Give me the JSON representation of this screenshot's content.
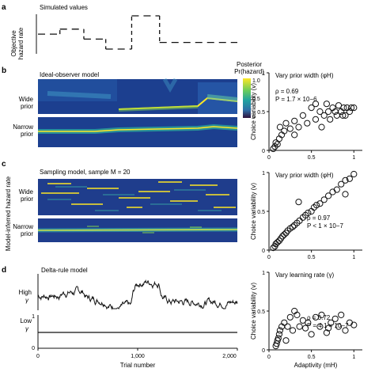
{
  "panel_a": {
    "letter": "a",
    "title": "Simulated values",
    "ylabel_line1": "Objective",
    "ylabel_line2": "hazard rate"
  },
  "panel_b": {
    "letter": "b",
    "title": "Ideal-observer model",
    "colorbar_title_line1": "Posterior",
    "colorbar_title_line2": "Pr(hazard)",
    "colorbar_ticks": [
      "1.0",
      "0.5",
      "0"
    ],
    "row1_line1": "Wide",
    "row1_line2": "prior",
    "row2_line1": "Narrow",
    "row2_line2": "prior"
  },
  "panel_c": {
    "letter": "c",
    "title": "Sampling model, sample M = 20",
    "row1_line1": "Wide",
    "row1_line2": "prior",
    "row2_line1": "Narrow",
    "row2_line2": "prior",
    "side_label": "Model-inferred hazard rate"
  },
  "panel_d": {
    "letter": "d",
    "title": "Delta-rule model",
    "high_label": "High",
    "low_label": "Low",
    "gamma_symbol": "γ",
    "axis_xlabel": "Trial number",
    "x_ticks": [
      "0",
      "1,000",
      "2,000"
    ],
    "low_y_ticks": [
      "1",
      "0"
    ]
  },
  "scatter_common": {
    "ylabel": "Choice variability (v)",
    "xlabel": "Adaptivity (mH)",
    "x_ticks": [
      "0",
      "0.5",
      "1"
    ],
    "y_ticks": [
      "0",
      "0.5",
      "1"
    ]
  },
  "chart_data": [
    {
      "type": "scatter",
      "title": "Vary prior width (φH)",
      "annotation_rho": "ρ = 0.69",
      "annotation_p": "P = 1.7 × 10−6",
      "xlim": [
        0,
        1.1
      ],
      "ylim": [
        0,
        1
      ],
      "points": [
        [
          0.05,
          0.02
        ],
        [
          0.07,
          0.05
        ],
        [
          0.08,
          0.1
        ],
        [
          0.1,
          0.08
        ],
        [
          0.12,
          0.15
        ],
        [
          0.15,
          0.2
        ],
        [
          0.13,
          0.3
        ],
        [
          0.2,
          0.35
        ],
        [
          0.25,
          0.28
        ],
        [
          0.3,
          0.38
        ],
        [
          0.35,
          0.3
        ],
        [
          0.4,
          0.45
        ],
        [
          0.45,
          0.35
        ],
        [
          0.5,
          0.55
        ],
        [
          0.55,
          0.4
        ],
        [
          0.6,
          0.5
        ],
        [
          0.62,
          0.3
        ],
        [
          0.65,
          0.45
        ],
        [
          0.68,
          0.6
        ],
        [
          0.7,
          0.5
        ],
        [
          0.72,
          0.4
        ],
        [
          0.75,
          0.55
        ],
        [
          0.78,
          0.5
        ],
        [
          0.8,
          0.45
        ],
        [
          0.82,
          0.58
        ],
        [
          0.85,
          0.5
        ],
        [
          0.88,
          0.55
        ],
        [
          0.9,
          0.45
        ],
        [
          0.92,
          0.55
        ],
        [
          0.95,
          0.5
        ],
        [
          0.97,
          0.55
        ],
        [
          1.0,
          0.55
        ],
        [
          0.18,
          0.25
        ],
        [
          0.3,
          0.2
        ],
        [
          0.55,
          0.6
        ],
        [
          0.87,
          0.45
        ]
      ]
    },
    {
      "type": "scatter",
      "title": "Vary prior width (φH)",
      "annotation_rho": "ρ = 0.97",
      "annotation_p": "P < 1 × 10−7",
      "xlim": [
        0,
        1.1
      ],
      "ylim": [
        0,
        1
      ],
      "points": [
        [
          0.05,
          0.03
        ],
        [
          0.07,
          0.05
        ],
        [
          0.08,
          0.08
        ],
        [
          0.1,
          0.1
        ],
        [
          0.12,
          0.12
        ],
        [
          0.14,
          0.15
        ],
        [
          0.16,
          0.18
        ],
        [
          0.18,
          0.2
        ],
        [
          0.2,
          0.22
        ],
        [
          0.22,
          0.25
        ],
        [
          0.25,
          0.28
        ],
        [
          0.28,
          0.3
        ],
        [
          0.3,
          0.32
        ],
        [
          0.33,
          0.35
        ],
        [
          0.36,
          0.38
        ],
        [
          0.4,
          0.42
        ],
        [
          0.43,
          0.45
        ],
        [
          0.46,
          0.48
        ],
        [
          0.5,
          0.5
        ],
        [
          0.53,
          0.55
        ],
        [
          0.56,
          0.58
        ],
        [
          0.6,
          0.6
        ],
        [
          0.65,
          0.65
        ],
        [
          0.7,
          0.7
        ],
        [
          0.75,
          0.75
        ],
        [
          0.8,
          0.78
        ],
        [
          0.85,
          0.85
        ],
        [
          0.9,
          0.9
        ],
        [
          0.95,
          0.92
        ],
        [
          1.0,
          0.98
        ],
        [
          0.35,
          0.62
        ],
        [
          0.9,
          0.72
        ]
      ]
    },
    {
      "type": "scatter",
      "title": "Vary learning rate (γ)",
      "annotation_rho": "ρ = 0.72",
      "annotation_p": "P = 4.1 × 10−7",
      "xlim": [
        0,
        1.1
      ],
      "ylim": [
        0,
        1
      ],
      "points": [
        [
          0.08,
          0.05
        ],
        [
          0.09,
          0.08
        ],
        [
          0.1,
          0.12
        ],
        [
          0.11,
          0.15
        ],
        [
          0.12,
          0.2
        ],
        [
          0.13,
          0.25
        ],
        [
          0.15,
          0.3
        ],
        [
          0.18,
          0.35
        ],
        [
          0.22,
          0.3
        ],
        [
          0.25,
          0.42
        ],
        [
          0.28,
          0.25
        ],
        [
          0.3,
          0.5
        ],
        [
          0.33,
          0.45
        ],
        [
          0.36,
          0.3
        ],
        [
          0.4,
          0.38
        ],
        [
          0.43,
          0.28
        ],
        [
          0.46,
          0.35
        ],
        [
          0.5,
          0.2
        ],
        [
          0.55,
          0.42
        ],
        [
          0.6,
          0.3
        ],
        [
          0.62,
          0.45
        ],
        [
          0.7,
          0.28
        ],
        [
          0.73,
          0.35
        ],
        [
          0.78,
          0.4
        ],
        [
          0.82,
          0.3
        ],
        [
          0.85,
          0.45
        ],
        [
          0.9,
          0.25
        ],
        [
          0.95,
          0.35
        ],
        [
          1.0,
          0.32
        ],
        [
          0.2,
          0.12
        ],
        [
          0.68,
          0.22
        ]
      ]
    },
    {
      "type": "line",
      "title": "Simulated values",
      "segments": [
        [
          0,
          0.45
        ],
        [
          0.11,
          0.6
        ],
        [
          0.23,
          0.3
        ],
        [
          0.34,
          0.0
        ],
        [
          0.47,
          1.0
        ],
        [
          0.61,
          0.2
        ]
      ]
    }
  ]
}
